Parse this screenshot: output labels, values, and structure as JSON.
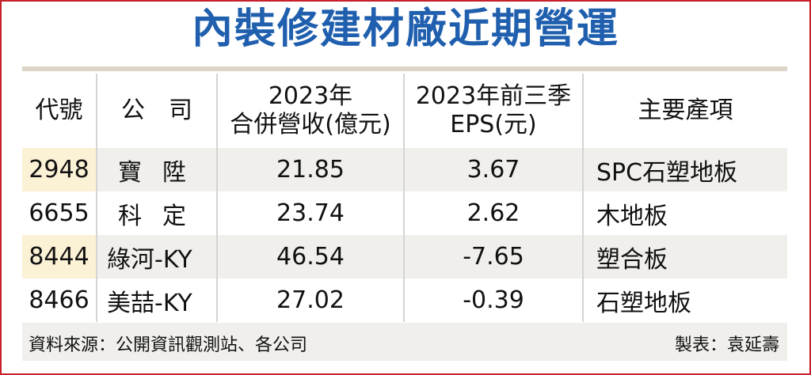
{
  "title": "內裝修建材廠近期營運",
  "headers": {
    "code": "代號",
    "company": "公　司",
    "revenue_line1": "2023年",
    "revenue_line2": "合併營收(億元)",
    "eps_line1": "2023年前三季",
    "eps_line2": "EPS(元)",
    "products": "主要產項"
  },
  "rows": [
    {
      "code": "2948",
      "company": "寶陞",
      "revenue": "21.85",
      "eps": "3.67",
      "products": "SPC石塑地板"
    },
    {
      "code": "6655",
      "company": "科定",
      "revenue": "23.74",
      "eps": "2.62",
      "products": "木地板"
    },
    {
      "code": "8444",
      "company": "綠河-KY",
      "revenue": "46.54",
      "eps": "-7.65",
      "products": "塑合板"
    },
    {
      "code": "8466",
      "company": "美喆-KY",
      "revenue": "27.02",
      "eps": "-0.39",
      "products": "石塑地板"
    }
  ],
  "footer": {
    "source": "資料來源：公開資訊觀測站、各公司",
    "credit": "製表：袁延壽"
  },
  "colors": {
    "title": "#1f5fae",
    "border": "#c8202b",
    "shade": "#f0efeb",
    "code_highlight": "#fbf1d5"
  }
}
